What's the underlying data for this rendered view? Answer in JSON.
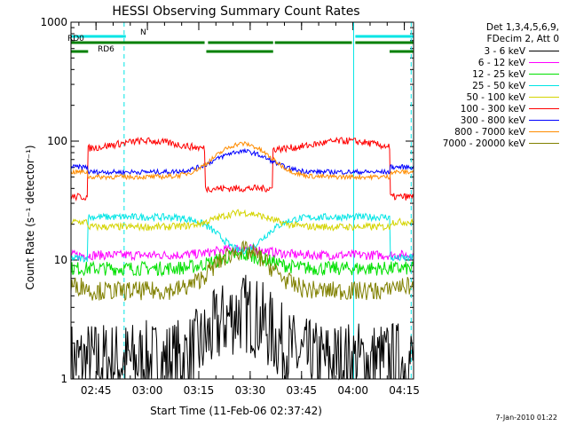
{
  "chart_data": {
    "type": "line",
    "title": "HESSI Observing Summary Count Rates",
    "xlabel": "Start Time (11-Feb-06 02:37:42)",
    "ylabel": "Count Rate (s⁻¹ detector⁻¹)",
    "yscale": "log",
    "ylim": [
      1,
      1000
    ],
    "xlim_minutes_after_0237": [
      0,
      100
    ],
    "xticks": [
      {
        "minute": 7.3,
        "label": "02:45"
      },
      {
        "minute": 22.3,
        "label": "03:00"
      },
      {
        "minute": 37.3,
        "label": "03:15"
      },
      {
        "minute": 52.3,
        "label": "03:30"
      },
      {
        "minute": 67.3,
        "label": "03:45"
      },
      {
        "minute": 82.3,
        "label": "04:00"
      },
      {
        "minute": 97.3,
        "label": "04:15"
      }
    ],
    "yticks": [
      {
        "value": 1,
        "label": "1"
      },
      {
        "value": 10,
        "label": "10"
      },
      {
        "value": 100,
        "label": "100"
      },
      {
        "value": 1000,
        "label": "1000"
      }
    ],
    "legend_header": [
      "Det 1,3,4,5,6,9,",
      "FDecim 2, Att 0"
    ],
    "legend_position": "right",
    "flags": [
      {
        "name": "N",
        "color": "#00e5e5",
        "segments": [
          [
            0,
            16
          ],
          [
            83,
            100
          ]
        ]
      },
      {
        "name": "RD0",
        "color": "#008000",
        "segments": [
          [
            0,
            39
          ],
          [
            40,
            59
          ],
          [
            59.5,
            82
          ],
          [
            83,
            100
          ]
        ]
      },
      {
        "name": "RD6",
        "color": "#008000",
        "segments": [
          [
            0,
            5
          ],
          [
            39.5,
            59
          ],
          [
            93,
            100
          ]
        ]
      }
    ],
    "vlines_solid": [
      0,
      82.5
    ],
    "vlines_dashed": [
      15.5,
      99.3
    ],
    "series": [
      {
        "name": "3 - 6 keV",
        "color": "#000000",
        "base": 1.4,
        "peak": 3.6,
        "level": "low",
        "noise": 0.35
      },
      {
        "name": "6 - 12 keV",
        "color": "#ff00ff",
        "base": 11,
        "peak": 12.5,
        "level": "flat",
        "noise": 0.04
      },
      {
        "name": "12 - 25 keV",
        "color": "#00e000",
        "base": 8.5,
        "peak": 11,
        "level": "flat",
        "noise": 0.06
      },
      {
        "name": "25 - 50 keV",
        "color": "#00e5e5",
        "base": 23,
        "peak": 12,
        "level": "dip",
        "noise": 0.03
      },
      {
        "name": "50 - 100 keV",
        "color": "#d4d400",
        "base": 19,
        "peak": 25,
        "level": "bump",
        "noise": 0.03
      },
      {
        "name": "100 - 300 keV",
        "color": "#ff0000",
        "base": 85,
        "peak": 40,
        "level": "hump",
        "noise": 0.03
      },
      {
        "name": "300 - 800 keV",
        "color": "#0000ff",
        "base": 55,
        "peak": 82,
        "level": "bump",
        "noise": 0.02
      },
      {
        "name": "800 - 7000 keV",
        "color": "#ff8c00",
        "base": 50,
        "peak": 95,
        "level": "bump",
        "noise": 0.02
      },
      {
        "name": "7000 - 20000 keV",
        "color": "#808000",
        "base": 5.5,
        "peak": 12,
        "level": "bump",
        "noise": 0.08
      }
    ]
  },
  "footer_text": "7-Jan-2010 01:22"
}
